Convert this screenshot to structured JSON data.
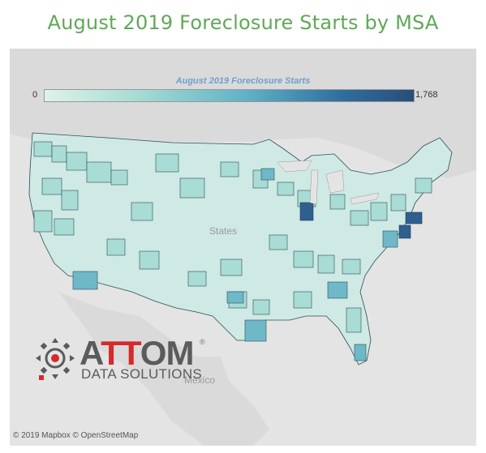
{
  "title": "August 2019 Foreclosure Starts by MSA",
  "legend": {
    "title": "August 2019 Foreclosure Starts",
    "min": "0",
    "max": "1,768",
    "gradient": [
      "#dff2ea",
      "#a7dcd3",
      "#5fb1c6",
      "#2f6f9e",
      "#2a4d7a"
    ]
  },
  "map_labels": {
    "states": "States",
    "mexico": "Mexico"
  },
  "logo": {
    "prefix": "A",
    "highlight": "TT",
    "suffix": "OM",
    "registered": "®",
    "subtitle": "DATA SOLUTIONS"
  },
  "attribution": "© 2019 Mapbox © OpenStreetMap",
  "colors": {
    "title": "#5fa857",
    "map_background": "#e2e2e2",
    "land": "#d7d7d7",
    "msa_light": "#a8dcd4",
    "msa_mid": "#6fb8c8",
    "msa_dark": "#2f5f8f"
  }
}
